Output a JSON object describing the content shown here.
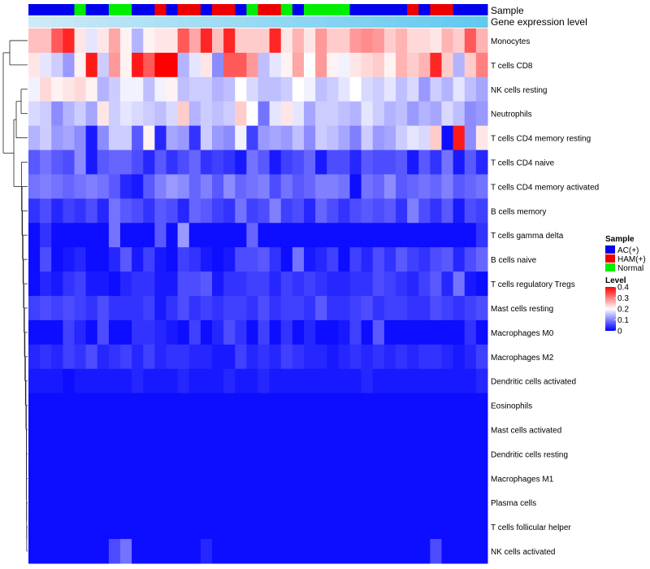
{
  "chart_data": {
    "type": "heatmap",
    "title": "",
    "annotation_tracks": [
      "Sample",
      "Gene expression level"
    ],
    "sample_groups": {
      "name": "Sample",
      "levels": [
        "AC(+)",
        "HAM(+)",
        "Normal"
      ],
      "colors": {
        "AC(+)": "#0000ee",
        "HAM(+)": "#ee0000",
        "Normal": "#00ee00"
      },
      "values": [
        "AC(+)",
        "AC(+)",
        "AC(+)",
        "AC(+)",
        "Normal",
        "AC(+)",
        "AC(+)",
        "Normal",
        "Normal",
        "AC(+)",
        "AC(+)",
        "HAM(+)",
        "AC(+)",
        "HAM(+)",
        "HAM(+)",
        "AC(+)",
        "HAM(+)",
        "HAM(+)",
        "AC(+)",
        "Normal",
        "HAM(+)",
        "HAM(+)",
        "Normal",
        "AC(+)",
        "Normal",
        "Normal",
        "Normal",
        "Normal",
        "AC(+)",
        "AC(+)",
        "AC(+)",
        "AC(+)",
        "AC(+)",
        "HAM(+)",
        "AC(+)",
        "HAM(+)",
        "HAM(+)",
        "AC(+)",
        "AC(+)",
        "AC(+)"
      ]
    },
    "expression_track": {
      "name": "Gene expression level",
      "values": [
        0.05,
        0.08,
        0.1,
        0.12,
        0.15,
        0.18,
        0.2,
        0.22,
        0.24,
        0.26,
        0.28,
        0.3,
        0.32,
        0.34,
        0.36,
        0.38,
        0.4,
        0.42,
        0.44,
        0.46,
        0.48,
        0.5,
        0.52,
        0.54,
        0.56,
        0.58,
        0.6,
        0.62,
        0.64,
        0.66,
        0.68,
        0.7,
        0.72,
        0.74,
        0.76,
        0.78,
        0.8,
        0.82,
        0.84,
        0.86
      ]
    },
    "rows": [
      "Monocytes",
      "T cells CD8",
      "NK cells resting",
      "Neutrophils",
      "T cells CD4 memory resting",
      "T cells CD4 naive",
      "T cells CD4 memory activated",
      "B cells memory",
      "T cells gamma delta",
      "B cells naive",
      "T cells regulatory  Tregs",
      "Mast cells resting",
      "Macrophages M0",
      "Macrophages M2",
      "Dendritic cells activated",
      "Eosinophils",
      "Mast cells activated",
      "Dendritic cells resting",
      "Macrophages M1",
      "Plasma cells",
      "T cells follicular helper",
      "NK cells activated"
    ],
    "columns": 40,
    "values": [
      [
        0.25,
        0.25,
        0.33,
        0.37,
        0.22,
        0.18,
        0.22,
        0.27,
        0.21,
        0.14,
        0.21,
        0.22,
        0.22,
        0.33,
        0.27,
        0.37,
        0.25,
        0.37,
        0.24,
        0.24,
        0.24,
        0.37,
        0.22,
        0.26,
        0.22,
        0.28,
        0.24,
        0.24,
        0.28,
        0.29,
        0.28,
        0.24,
        0.26,
        0.23,
        0.23,
        0.22,
        0.26,
        0.24,
        0.33,
        0.26
      ],
      [
        0.22,
        0.18,
        0.16,
        0.12,
        0.21,
        0.38,
        0.16,
        0.28,
        0.21,
        0.38,
        0.33,
        0.4,
        0.4,
        0.14,
        0.18,
        0.22,
        0.11,
        0.33,
        0.33,
        0.28,
        0.15,
        0.18,
        0.21,
        0.27,
        0.2,
        0.28,
        0.21,
        0.19,
        0.22,
        0.23,
        0.24,
        0.21,
        0.26,
        0.24,
        0.26,
        0.37,
        0.24,
        0.14,
        0.24,
        0.3
      ],
      [
        0.19,
        0.23,
        0.21,
        0.22,
        0.23,
        0.21,
        0.14,
        0.16,
        0.19,
        0.19,
        0.15,
        0.19,
        0.21,
        0.15,
        0.16,
        0.16,
        0.14,
        0.15,
        0.2,
        0.17,
        0.15,
        0.15,
        0.16,
        0.2,
        0.19,
        0.15,
        0.16,
        0.18,
        0.2,
        0.17,
        0.16,
        0.18,
        0.15,
        0.17,
        0.12,
        0.16,
        0.14,
        0.18,
        0.15,
        0.13
      ],
      [
        0.17,
        0.16,
        0.11,
        0.14,
        0.16,
        0.13,
        0.22,
        0.16,
        0.18,
        0.17,
        0.16,
        0.15,
        0.17,
        0.24,
        0.14,
        0.16,
        0.15,
        0.16,
        0.24,
        0.2,
        0.09,
        0.18,
        0.22,
        0.18,
        0.13,
        0.16,
        0.16,
        0.15,
        0.14,
        0.18,
        0.16,
        0.14,
        0.15,
        0.12,
        0.14,
        0.13,
        0.17,
        0.15,
        0.11,
        0.12
      ],
      [
        0.14,
        0.16,
        0.12,
        0.13,
        0.11,
        0.02,
        0.11,
        0.16,
        0.16,
        0.07,
        0.21,
        0.03,
        0.13,
        0.12,
        0.04,
        0.16,
        0.12,
        0.11,
        0.19,
        0.05,
        0.12,
        0.13,
        0.12,
        0.15,
        0.11,
        0.16,
        0.15,
        0.13,
        0.1,
        0.16,
        0.12,
        0.13,
        0.16,
        0.18,
        0.17,
        0.24,
        0.01,
        0.38,
        0.11,
        0.22
      ],
      [
        0.07,
        0.09,
        0.07,
        0.06,
        0.11,
        0.02,
        0.07,
        0.08,
        0.08,
        0.06,
        0.03,
        0.07,
        0.04,
        0.06,
        0.08,
        0.04,
        0.05,
        0.04,
        0.02,
        0.09,
        0.07,
        0.02,
        0.05,
        0.06,
        0.08,
        0.02,
        0.06,
        0.06,
        0.03,
        0.07,
        0.06,
        0.06,
        0.07,
        0.02,
        0.07,
        0.04,
        0.09,
        0.02,
        0.07,
        0.03
      ],
      [
        0.09,
        0.1,
        0.09,
        0.08,
        0.09,
        0.1,
        0.09,
        0.07,
        0.03,
        0.02,
        0.07,
        0.1,
        0.12,
        0.11,
        0.08,
        0.1,
        0.07,
        0.11,
        0.08,
        0.09,
        0.1,
        0.06,
        0.09,
        0.07,
        0.08,
        0.1,
        0.1,
        0.09,
        0.01,
        0.09,
        0.08,
        0.11,
        0.07,
        0.08,
        0.09,
        0.08,
        0.1,
        0.07,
        0.08,
        0.09
      ],
      [
        0.04,
        0.06,
        0.03,
        0.05,
        0.04,
        0.06,
        0.03,
        0.09,
        0.07,
        0.06,
        0.04,
        0.07,
        0.06,
        0.03,
        0.08,
        0.07,
        0.05,
        0.04,
        0.09,
        0.05,
        0.06,
        0.1,
        0.05,
        0.06,
        0.03,
        0.08,
        0.06,
        0.04,
        0.06,
        0.07,
        0.06,
        0.07,
        0.04,
        0.1,
        0.06,
        0.04,
        0.07,
        0.02,
        0.06,
        0.05
      ],
      [
        0.01,
        0.04,
        0.01,
        0.01,
        0.01,
        0.01,
        0.01,
        0.09,
        0.01,
        0.01,
        0.01,
        0.07,
        0.01,
        0.12,
        0.01,
        0.01,
        0.01,
        0.01,
        0.01,
        0.08,
        0.01,
        0.01,
        0.01,
        0.01,
        0.01,
        0.01,
        0.01,
        0.01,
        0.01,
        0.01,
        0.01,
        0.01,
        0.01,
        0.01,
        0.01,
        0.01,
        0.01,
        0.01,
        0.01,
        0.04
      ],
      [
        0.01,
        0.06,
        0.01,
        0.02,
        0.03,
        0.01,
        0.01,
        0.03,
        0.07,
        0.02,
        0.05,
        0.02,
        0.01,
        0.05,
        0.04,
        0.02,
        0.01,
        0.02,
        0.06,
        0.06,
        0.07,
        0.04,
        0.01,
        0.09,
        0.02,
        0.03,
        0.05,
        0.01,
        0.05,
        0.03,
        0.06,
        0.04,
        0.07,
        0.05,
        0.04,
        0.06,
        0.07,
        0.03,
        0.06,
        0.08
      ],
      [
        0.01,
        0.03,
        0.02,
        0.04,
        0.05,
        0.02,
        0.02,
        0.01,
        0.03,
        0.04,
        0.04,
        0.02,
        0.02,
        0.06,
        0.06,
        0.07,
        0.02,
        0.04,
        0.04,
        0.05,
        0.05,
        0.03,
        0.05,
        0.04,
        0.05,
        0.04,
        0.03,
        0.03,
        0.04,
        0.04,
        0.06,
        0.05,
        0.04,
        0.03,
        0.05,
        0.07,
        0.03,
        0.09,
        0.02,
        0.01
      ],
      [
        0.05,
        0.06,
        0.05,
        0.06,
        0.05,
        0.04,
        0.06,
        0.04,
        0.04,
        0.04,
        0.05,
        0.02,
        0.04,
        0.06,
        0.04,
        0.05,
        0.04,
        0.05,
        0.05,
        0.04,
        0.06,
        0.04,
        0.05,
        0.05,
        0.04,
        0.07,
        0.04,
        0.04,
        0.05,
        0.06,
        0.04,
        0.05,
        0.05,
        0.04,
        0.04,
        0.06,
        0.05,
        0.04,
        0.05,
        0.06
      ],
      [
        0.01,
        0.01,
        0.01,
        0.05,
        0.03,
        0.01,
        0.06,
        0.01,
        0.01,
        0.04,
        0.04,
        0.03,
        0.02,
        0.01,
        0.05,
        0.01,
        0.03,
        0.06,
        0.04,
        0.01,
        0.05,
        0.01,
        0.04,
        0.01,
        0.03,
        0.01,
        0.01,
        0.02,
        0.05,
        0.01,
        0.07,
        0.01,
        0.01,
        0.01,
        0.01,
        0.01,
        0.01,
        0.01,
        0.04,
        0.01
      ],
      [
        0.03,
        0.04,
        0.03,
        0.05,
        0.04,
        0.06,
        0.03,
        0.04,
        0.05,
        0.03,
        0.05,
        0.03,
        0.04,
        0.04,
        0.03,
        0.03,
        0.02,
        0.02,
        0.05,
        0.03,
        0.04,
        0.03,
        0.05,
        0.04,
        0.03,
        0.03,
        0.02,
        0.03,
        0.04,
        0.03,
        0.04,
        0.03,
        0.04,
        0.03,
        0.04,
        0.04,
        0.03,
        0.02,
        0.03,
        0.05
      ],
      [
        0.02,
        0.02,
        0.02,
        0.01,
        0.02,
        0.02,
        0.02,
        0.02,
        0.02,
        0.03,
        0.02,
        0.02,
        0.02,
        0.03,
        0.02,
        0.02,
        0.02,
        0.03,
        0.02,
        0.02,
        0.03,
        0.02,
        0.02,
        0.02,
        0.02,
        0.02,
        0.02,
        0.02,
        0.02,
        0.03,
        0.02,
        0.02,
        0.02,
        0.02,
        0.02,
        0.02,
        0.02,
        0.02,
        0.02,
        0.03
      ],
      [
        0.01,
        0.01,
        0.01,
        0.01,
        0.01,
        0.01,
        0.01,
        0.01,
        0.01,
        0.01,
        0.01,
        0.01,
        0.01,
        0.01,
        0.01,
        0.01,
        0.01,
        0.01,
        0.01,
        0.01,
        0.01,
        0.01,
        0.01,
        0.01,
        0.01,
        0.01,
        0.01,
        0.01,
        0.01,
        0.01,
        0.01,
        0.01,
        0.01,
        0.01,
        0.01,
        0.01,
        0.01,
        0.01,
        0.01,
        0.01
      ],
      [
        0.01,
        0.01,
        0.01,
        0.01,
        0.01,
        0.01,
        0.01,
        0.01,
        0.01,
        0.01,
        0.01,
        0.01,
        0.01,
        0.01,
        0.01,
        0.01,
        0.01,
        0.01,
        0.01,
        0.01,
        0.01,
        0.01,
        0.01,
        0.01,
        0.01,
        0.01,
        0.01,
        0.01,
        0.01,
        0.01,
        0.01,
        0.01,
        0.01,
        0.01,
        0.01,
        0.01,
        0.01,
        0.01,
        0.01,
        0.01
      ],
      [
        0.01,
        0.01,
        0.01,
        0.01,
        0.01,
        0.01,
        0.01,
        0.01,
        0.01,
        0.01,
        0.01,
        0.01,
        0.01,
        0.01,
        0.01,
        0.01,
        0.01,
        0.01,
        0.01,
        0.01,
        0.01,
        0.01,
        0.01,
        0.01,
        0.01,
        0.01,
        0.01,
        0.01,
        0.01,
        0.01,
        0.01,
        0.01,
        0.01,
        0.01,
        0.01,
        0.01,
        0.01,
        0.01,
        0.01,
        0.01
      ],
      [
        0.01,
        0.01,
        0.01,
        0.01,
        0.01,
        0.01,
        0.01,
        0.01,
        0.01,
        0.01,
        0.01,
        0.01,
        0.01,
        0.01,
        0.01,
        0.01,
        0.01,
        0.01,
        0.01,
        0.01,
        0.01,
        0.01,
        0.01,
        0.01,
        0.01,
        0.01,
        0.01,
        0.01,
        0.01,
        0.01,
        0.01,
        0.01,
        0.01,
        0.01,
        0.01,
        0.01,
        0.01,
        0.01,
        0.01,
        0.01
      ],
      [
        0.01,
        0.01,
        0.01,
        0.01,
        0.01,
        0.01,
        0.01,
        0.01,
        0.01,
        0.01,
        0.01,
        0.01,
        0.01,
        0.01,
        0.01,
        0.01,
        0.01,
        0.01,
        0.01,
        0.01,
        0.01,
        0.01,
        0.01,
        0.01,
        0.01,
        0.01,
        0.01,
        0.01,
        0.01,
        0.01,
        0.01,
        0.01,
        0.01,
        0.01,
        0.01,
        0.01,
        0.01,
        0.01,
        0.01,
        0.01
      ],
      [
        0.01,
        0.01,
        0.01,
        0.01,
        0.01,
        0.01,
        0.01,
        0.01,
        0.01,
        0.01,
        0.01,
        0.01,
        0.01,
        0.01,
        0.01,
        0.01,
        0.01,
        0.01,
        0.01,
        0.01,
        0.01,
        0.01,
        0.01,
        0.01,
        0.01,
        0.01,
        0.01,
        0.01,
        0.01,
        0.01,
        0.01,
        0.01,
        0.01,
        0.01,
        0.01,
        0.01,
        0.01,
        0.01,
        0.01,
        0.01
      ],
      [
        0.01,
        0.01,
        0.01,
        0.01,
        0.01,
        0.01,
        0.01,
        0.06,
        0.09,
        0.01,
        0.01,
        0.01,
        0.01,
        0.01,
        0.01,
        0.03,
        0.01,
        0.01,
        0.01,
        0.01,
        0.01,
        0.01,
        0.01,
        0.01,
        0.01,
        0.01,
        0.01,
        0.01,
        0.01,
        0.01,
        0.01,
        0.01,
        0.01,
        0.01,
        0.01,
        0.06,
        0.01,
        0.01,
        0.01,
        0.01
      ]
    ],
    "color_scale": {
      "name": "Level",
      "min": 0,
      "max": 0.4,
      "colors": [
        "#0000ff",
        "#ffffff",
        "#ff0000"
      ],
      "ticks": [
        "0.4",
        "0.3",
        "0.2",
        "0.1",
        "0"
      ]
    },
    "dendrogram_rows": [
      [
        0,
        1
      ],
      [
        0,
        2
      ],
      [
        0,
        3
      ],
      [
        0,
        4
      ],
      [
        0,
        5
      ],
      [
        0,
        6
      ],
      [
        0,
        7
      ],
      [
        0,
        8
      ],
      [
        0,
        9
      ],
      [
        0,
        10
      ],
      [
        0,
        11
      ],
      [
        0,
        12
      ],
      [
        0,
        13
      ],
      [
        0,
        14
      ],
      [
        0,
        15
      ],
      [
        0,
        16
      ],
      [
        0,
        17
      ],
      [
        0,
        18
      ],
      [
        0,
        19
      ],
      [
        0,
        20
      ],
      [
        0,
        21
      ]
    ],
    "legend_position": "right"
  }
}
